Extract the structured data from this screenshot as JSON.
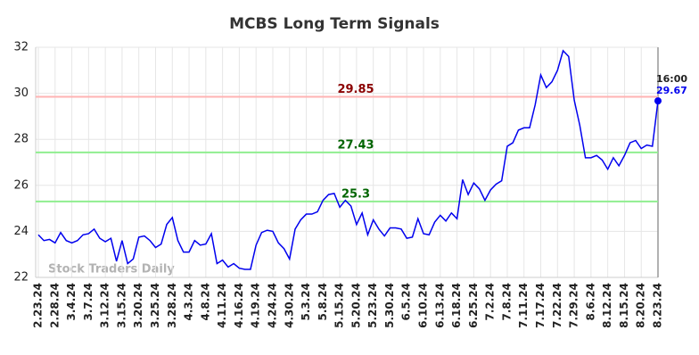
{
  "chart_data": {
    "type": "line",
    "title": "MCBS Long Term Signals",
    "categories": [
      "2.23.24",
      null,
      null,
      "2.28.24",
      null,
      null,
      "3.4.24",
      null,
      null,
      "3.7.24",
      null,
      null,
      "3.12.24",
      null,
      null,
      "3.15.24",
      null,
      null,
      "3.20.24",
      null,
      null,
      "3.25.24",
      null,
      null,
      "3.28.24",
      null,
      null,
      "4.3.24",
      null,
      null,
      "4.8.24",
      null,
      null,
      "4.11.24",
      null,
      null,
      "4.16.24",
      null,
      null,
      "4.19.24",
      null,
      null,
      "4.24.24",
      null,
      null,
      "4.30.24",
      null,
      null,
      "5.3.24",
      null,
      null,
      "5.8.24",
      null,
      null,
      "5.15.24",
      null,
      null,
      "5.20.24",
      null,
      null,
      "5.23.24",
      null,
      null,
      "5.30.24",
      null,
      null,
      "6.5.24",
      null,
      null,
      "6.10.24",
      null,
      null,
      "6.13.24",
      null,
      null,
      "6.18.24",
      null,
      null,
      "6.25.24",
      null,
      null,
      "7.2.24",
      null,
      null,
      "7.8.24",
      null,
      null,
      "7.11.24",
      null,
      null,
      "7.17.24",
      null,
      null,
      "7.22.24",
      null,
      null,
      "7.29.24",
      null,
      null,
      "8.6.24",
      null,
      null,
      "8.12.24",
      null,
      null,
      "8.15.24",
      null,
      null,
      "8.20.24",
      null,
      null,
      "8.23.24"
    ],
    "series": [
      {
        "color": "#0000ee",
        "values": [
          23.85,
          23.6,
          23.65,
          23.5,
          23.95,
          23.6,
          23.5,
          23.6,
          23.85,
          23.9,
          24.1,
          23.7,
          23.55,
          23.7,
          22.7,
          23.6,
          22.6,
          22.8,
          23.75,
          23.8,
          23.6,
          23.3,
          23.45,
          24.3,
          24.6,
          23.6,
          23.1,
          23.1,
          23.6,
          23.4,
          23.45,
          23.9,
          22.6,
          22.75,
          22.45,
          22.6,
          22.4,
          22.35,
          22.35,
          23.4,
          23.95,
          24.05,
          24.0,
          23.5,
          23.25,
          22.8,
          24.1,
          24.5,
          24.75,
          24.75,
          24.85,
          25.35,
          25.6,
          25.65,
          25.05,
          25.35,
          25.1,
          24.3,
          24.8,
          23.85,
          24.5,
          24.1,
          23.8,
          24.15,
          24.15,
          24.1,
          23.7,
          23.75,
          24.55,
          23.9,
          23.85,
          24.4,
          24.7,
          24.45,
          24.8,
          24.55,
          26.25,
          25.6,
          26.1,
          25.85,
          25.35,
          25.8,
          26.05,
          26.2,
          27.7,
          27.85,
          28.4,
          28.5,
          28.5,
          29.5,
          30.8,
          30.25,
          30.5,
          31.0,
          31.85,
          31.6,
          29.7,
          28.6,
          27.2,
          27.2,
          27.3,
          27.1,
          26.7,
          27.2,
          26.85,
          27.3,
          27.85,
          27.95,
          27.6,
          27.75,
          27.7,
          29.67
        ]
      }
    ],
    "levels": [
      {
        "value": 29.85,
        "color": "#ffb3b3",
        "text_color": "#8b0000"
      },
      {
        "value": 27.43,
        "color": "#90ee90",
        "text_color": "#006400"
      },
      {
        "value": 25.3,
        "color": "#90ee90",
        "text_color": "#006400"
      }
    ],
    "last_label": "16:00",
    "watermark": "Stock Traders Daily",
    "ylim": [
      22,
      32
    ],
    "yticks": [
      22,
      24,
      26,
      28,
      30,
      32
    ],
    "grid": true
  }
}
